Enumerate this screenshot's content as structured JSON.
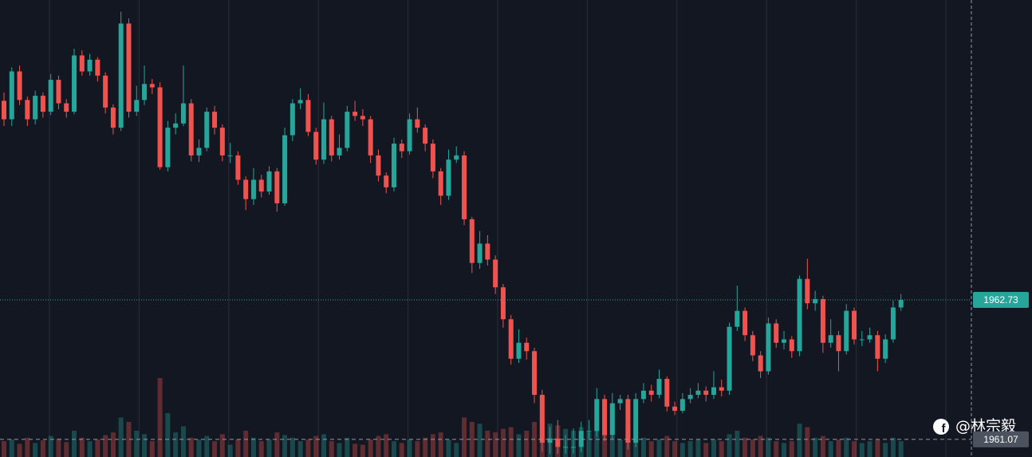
{
  "chart_data": {
    "type": "candlestick",
    "up_color": "#26a69a",
    "down_color": "#ef5350",
    "ylim": [
      1960.86,
      1966.3
    ],
    "vlim": [
      0,
      100
    ],
    "last_price": 1962.73,
    "level": 1961.07,
    "watermark": "@林宗毅",
    "candles": [
      [
        1965.1,
        1965.2,
        1964.8,
        1964.88
      ],
      [
        1964.88,
        1965.5,
        1964.8,
        1965.45
      ],
      [
        1965.45,
        1965.52,
        1965.05,
        1965.11
      ],
      [
        1965.11,
        1965.15,
        1964.8,
        1964.88
      ],
      [
        1964.88,
        1965.22,
        1964.82,
        1965.16
      ],
      [
        1965.16,
        1965.2,
        1964.9,
        1964.97
      ],
      [
        1964.97,
        1965.42,
        1964.93,
        1965.35
      ],
      [
        1965.35,
        1965.4,
        1965.0,
        1965.07
      ],
      [
        1965.07,
        1965.12,
        1964.9,
        1964.97
      ],
      [
        1964.97,
        1965.72,
        1964.94,
        1965.64
      ],
      [
        1965.64,
        1965.7,
        1965.4,
        1965.45
      ],
      [
        1965.45,
        1965.66,
        1965.4,
        1965.59
      ],
      [
        1965.59,
        1965.62,
        1965.33,
        1965.4
      ],
      [
        1965.4,
        1965.44,
        1964.95,
        1965.02
      ],
      [
        1965.02,
        1965.06,
        1964.7,
        1964.78
      ],
      [
        1964.78,
        1966.16,
        1964.74,
        1966.02
      ],
      [
        1966.02,
        1966.08,
        1964.9,
        1964.97
      ],
      [
        1964.97,
        1965.28,
        1964.92,
        1965.11
      ],
      [
        1965.11,
        1965.52,
        1965.05,
        1965.3
      ],
      [
        1965.3,
        1965.36,
        1965.18,
        1965.26
      ],
      [
        1965.26,
        1965.32,
        1964.28,
        1964.31
      ],
      [
        1964.31,
        1964.86,
        1964.26,
        1964.78
      ],
      [
        1964.78,
        1964.95,
        1964.7,
        1964.83
      ],
      [
        1964.83,
        1965.52,
        1964.8,
        1965.07
      ],
      [
        1965.07,
        1965.12,
        1964.38,
        1964.45
      ],
      [
        1964.45,
        1964.64,
        1964.37,
        1964.54
      ],
      [
        1964.54,
        1965.02,
        1964.5,
        1964.97
      ],
      [
        1964.97,
        1965.04,
        1964.7,
        1964.78
      ],
      [
        1964.78,
        1964.82,
        1964.38,
        1964.45
      ],
      [
        1964.45,
        1964.6,
        1964.36,
        1964.45
      ],
      [
        1964.45,
        1964.5,
        1964.1,
        1964.16
      ],
      [
        1964.16,
        1964.2,
        1963.8,
        1963.93
      ],
      [
        1963.93,
        1964.3,
        1963.86,
        1964.16
      ],
      [
        1964.16,
        1964.22,
        1963.95,
        1964.02
      ],
      [
        1964.02,
        1964.32,
        1963.98,
        1964.26
      ],
      [
        1964.26,
        1964.3,
        1963.78,
        1963.88
      ],
      [
        1963.88,
        1964.78,
        1963.85,
        1964.69
      ],
      [
        1964.69,
        1965.12,
        1964.62,
        1965.07
      ],
      [
        1965.07,
        1965.25,
        1965.0,
        1965.11
      ],
      [
        1965.11,
        1965.18,
        1964.68,
        1964.73
      ],
      [
        1964.73,
        1964.78,
        1964.34,
        1964.4
      ],
      [
        1964.4,
        1965.08,
        1964.35,
        1964.88
      ],
      [
        1964.88,
        1964.92,
        1964.38,
        1964.45
      ],
      [
        1964.45,
        1964.7,
        1964.4,
        1964.54
      ],
      [
        1964.54,
        1965.04,
        1964.5,
        1964.97
      ],
      [
        1964.97,
        1965.1,
        1964.86,
        1964.92
      ],
      [
        1964.92,
        1965.0,
        1964.8,
        1964.88
      ],
      [
        1964.88,
        1964.92,
        1964.36,
        1964.45
      ],
      [
        1964.45,
        1964.52,
        1964.14,
        1964.21
      ],
      [
        1964.21,
        1964.25,
        1964.0,
        1964.07
      ],
      [
        1964.07,
        1964.66,
        1964.02,
        1964.59
      ],
      [
        1964.59,
        1964.64,
        1964.42,
        1964.5
      ],
      [
        1964.5,
        1964.95,
        1964.46,
        1964.88
      ],
      [
        1964.88,
        1965.02,
        1964.72,
        1964.78
      ],
      [
        1964.78,
        1964.82,
        1964.5,
        1964.59
      ],
      [
        1964.59,
        1964.64,
        1964.18,
        1964.26
      ],
      [
        1964.26,
        1964.3,
        1963.86,
        1963.97
      ],
      [
        1963.97,
        1964.52,
        1963.92,
        1964.4
      ],
      [
        1964.4,
        1964.56,
        1964.36,
        1964.45
      ],
      [
        1964.45,
        1964.5,
        1963.62,
        1963.69
      ],
      [
        1963.69,
        1963.72,
        1963.05,
        1963.17
      ],
      [
        1963.17,
        1963.55,
        1963.1,
        1963.4
      ],
      [
        1963.4,
        1963.5,
        1963.14,
        1963.21
      ],
      [
        1963.21,
        1963.26,
        1962.8,
        1962.88
      ],
      [
        1962.88,
        1962.92,
        1962.4,
        1962.5
      ],
      [
        1962.5,
        1962.55,
        1961.96,
        1962.03
      ],
      [
        1962.03,
        1962.38,
        1961.98,
        1962.22
      ],
      [
        1962.22,
        1962.28,
        1962.02,
        1962.12
      ],
      [
        1962.12,
        1962.16,
        1961.5,
        1961.6
      ],
      [
        1961.6,
        1961.66,
        1960.92,
        1961.03
      ],
      [
        1961.03,
        1961.22,
        1960.9,
        1961.08
      ],
      [
        1961.08,
        1961.3,
        1960.9,
        1960.98
      ],
      [
        1960.98,
        1961.12,
        1960.9,
        1960.98
      ],
      [
        1960.98,
        1961.2,
        1960.9,
        1960.98
      ],
      [
        1960.98,
        1961.28,
        1960.92,
        1961.17
      ],
      [
        1961.17,
        1961.3,
        1961.08,
        1961.17
      ],
      [
        1961.17,
        1961.68,
        1961.1,
        1961.55
      ],
      [
        1961.55,
        1961.6,
        1961.05,
        1961.12
      ],
      [
        1961.12,
        1961.62,
        1961.08,
        1961.5
      ],
      [
        1961.5,
        1961.6,
        1961.42,
        1961.55
      ],
      [
        1961.55,
        1961.6,
        1960.95,
        1961.03
      ],
      [
        1961.03,
        1961.62,
        1960.98,
        1961.55
      ],
      [
        1961.55,
        1961.74,
        1961.5,
        1961.65
      ],
      [
        1961.65,
        1961.72,
        1961.52,
        1961.6
      ],
      [
        1961.6,
        1961.9,
        1961.56,
        1961.79
      ],
      [
        1961.79,
        1961.82,
        1961.4,
        1961.46
      ],
      [
        1961.46,
        1961.52,
        1961.36,
        1961.41
      ],
      [
        1961.41,
        1961.62,
        1961.38,
        1961.55
      ],
      [
        1961.55,
        1961.68,
        1961.5,
        1961.6
      ],
      [
        1961.6,
        1961.74,
        1961.56,
        1961.65
      ],
      [
        1961.65,
        1961.7,
        1961.52,
        1961.6
      ],
      [
        1961.6,
        1961.88,
        1961.55,
        1961.69
      ],
      [
        1961.69,
        1961.78,
        1961.58,
        1961.65
      ],
      [
        1961.65,
        1962.46,
        1961.6,
        1962.41
      ],
      [
        1962.41,
        1962.9,
        1962.36,
        1962.6
      ],
      [
        1962.6,
        1962.64,
        1962.24,
        1962.31
      ],
      [
        1962.31,
        1962.36,
        1962.0,
        1962.07
      ],
      [
        1962.07,
        1962.12,
        1961.8,
        1961.88
      ],
      [
        1961.88,
        1962.52,
        1961.84,
        1962.45
      ],
      [
        1962.45,
        1962.5,
        1962.16,
        1962.22
      ],
      [
        1962.22,
        1962.36,
        1962.14,
        1962.26
      ],
      [
        1962.26,
        1962.3,
        1962.04,
        1962.12
      ],
      [
        1962.12,
        1963.02,
        1962.06,
        1962.98
      ],
      [
        1962.98,
        1963.22,
        1962.62,
        1962.69
      ],
      [
        1962.69,
        1962.84,
        1962.6,
        1962.74
      ],
      [
        1962.74,
        1962.78,
        1962.1,
        1962.22
      ],
      [
        1962.22,
        1962.5,
        1962.16,
        1962.31
      ],
      [
        1962.31,
        1962.36,
        1961.88,
        1962.12
      ],
      [
        1962.12,
        1962.68,
        1962.08,
        1962.6
      ],
      [
        1962.6,
        1962.64,
        1962.2,
        1962.26
      ],
      [
        1962.26,
        1962.36,
        1962.18,
        1962.26
      ],
      [
        1962.26,
        1962.4,
        1962.22,
        1962.31
      ],
      [
        1962.31,
        1962.36,
        1961.88,
        1962.03
      ],
      [
        1962.03,
        1962.32,
        1961.98,
        1962.26
      ],
      [
        1962.26,
        1962.72,
        1962.22,
        1962.64
      ],
      [
        1962.64,
        1962.8,
        1962.6,
        1962.73
      ]
    ],
    "volume": [
      18,
      20,
      15,
      22,
      16,
      19,
      24,
      21,
      17,
      30,
      22,
      18,
      20,
      25,
      28,
      45,
      40,
      30,
      26,
      18,
      90,
      50,
      28,
      35,
      22,
      20,
      24,
      18,
      26,
      14,
      20,
      30,
      22,
      18,
      20,
      28,
      25,
      22,
      18,
      20,
      24,
      26,
      18,
      16,
      22,
      15,
      14,
      20,
      24,
      26,
      18,
      16,
      20,
      18,
      22,
      26,
      28,
      20,
      16,
      45,
      40,
      38,
      30,
      28,
      32,
      34,
      26,
      30,
      40,
      45,
      38,
      36,
      32,
      30,
      34,
      28,
      30,
      26,
      24,
      20,
      36,
      30,
      22,
      18,
      20,
      24,
      18,
      16,
      18,
      20,
      16,
      20,
      18,
      26,
      30,
      22,
      20,
      24,
      22,
      18,
      16,
      18,
      38,
      34,
      22,
      24,
      18,
      20,
      22,
      18,
      16,
      18,
      20,
      16,
      22,
      18
    ]
  }
}
